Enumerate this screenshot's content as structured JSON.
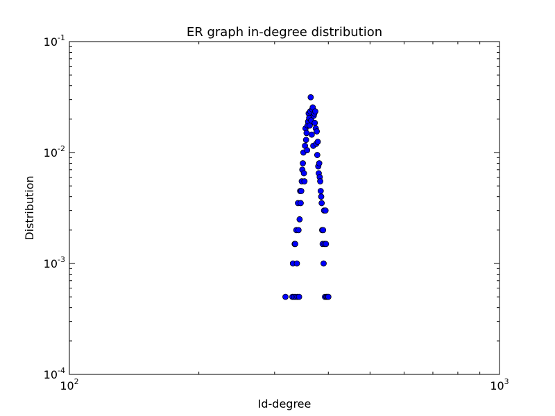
{
  "chart_data": {
    "type": "scatter",
    "title": "ER graph in-degree distribution",
    "xlabel": "Id-degree",
    "ylabel": "Distribution",
    "xscale": "log",
    "yscale": "log",
    "xlim": [
      100,
      1000
    ],
    "ylim": [
      0.0001,
      0.1
    ],
    "grid": false,
    "legend": "none",
    "marker_color": "#0000ff",
    "marker_edge_color": "#000000",
    "x_ticks": [
      {
        "base": "10",
        "exp": "2",
        "value": 100
      },
      {
        "base": "10",
        "exp": "3",
        "value": 1000
      }
    ],
    "y_ticks": [
      {
        "base": "10",
        "exp": "-4",
        "value": 0.0001
      },
      {
        "base": "10",
        "exp": "-3",
        "value": 0.001
      },
      {
        "base": "10",
        "exp": "-2",
        "value": 0.01
      },
      {
        "base": "10",
        "exp": "-1",
        "value": 0.1
      }
    ],
    "points": [
      {
        "x": 318,
        "y": 0.0005
      },
      {
        "x": 330,
        "y": 0.0005
      },
      {
        "x": 331,
        "y": 0.001
      },
      {
        "x": 333,
        "y": 0.0005
      },
      {
        "x": 334,
        "y": 0.0015
      },
      {
        "x": 335,
        "y": 0.0015
      },
      {
        "x": 336,
        "y": 0.0005
      },
      {
        "x": 337,
        "y": 0.002
      },
      {
        "x": 338,
        "y": 0.001
      },
      {
        "x": 339,
        "y": 0.0005
      },
      {
        "x": 340,
        "y": 0.0035
      },
      {
        "x": 341,
        "y": 0.002
      },
      {
        "x": 342,
        "y": 0.0005
      },
      {
        "x": 343,
        "y": 0.0025
      },
      {
        "x": 344,
        "y": 0.0045
      },
      {
        "x": 345,
        "y": 0.0035
      },
      {
        "x": 346,
        "y": 0.0045
      },
      {
        "x": 347,
        "y": 0.0055
      },
      {
        "x": 348,
        "y": 0.007
      },
      {
        "x": 349,
        "y": 0.008
      },
      {
        "x": 350,
        "y": 0.01
      },
      {
        "x": 351,
        "y": 0.0065
      },
      {
        "x": 352,
        "y": 0.0055
      },
      {
        "x": 353,
        "y": 0.0115
      },
      {
        "x": 354,
        "y": 0.0165
      },
      {
        "x": 355,
        "y": 0.013
      },
      {
        "x": 356,
        "y": 0.015
      },
      {
        "x": 357,
        "y": 0.0105
      },
      {
        "x": 358,
        "y": 0.0175
      },
      {
        "x": 359,
        "y": 0.019
      },
      {
        "x": 360,
        "y": 0.0225
      },
      {
        "x": 361,
        "y": 0.0205
      },
      {
        "x": 362,
        "y": 0.0175
      },
      {
        "x": 363,
        "y": 0.0235
      },
      {
        "x": 364,
        "y": 0.0315
      },
      {
        "x": 365,
        "y": 0.0195
      },
      {
        "x": 366,
        "y": 0.0145
      },
      {
        "x": 367,
        "y": 0.0245
      },
      {
        "x": 368,
        "y": 0.0255
      },
      {
        "x": 369,
        "y": 0.0115
      },
      {
        "x": 370,
        "y": 0.0215
      },
      {
        "x": 371,
        "y": 0.0225
      },
      {
        "x": 372,
        "y": 0.0185
      },
      {
        "x": 373,
        "y": 0.0235
      },
      {
        "x": 374,
        "y": 0.0165
      },
      {
        "x": 375,
        "y": 0.012
      },
      {
        "x": 376,
        "y": 0.0155
      },
      {
        "x": 377,
        "y": 0.0095
      },
      {
        "x": 378,
        "y": 0.0125
      },
      {
        "x": 379,
        "y": 0.0075
      },
      {
        "x": 380,
        "y": 0.0065
      },
      {
        "x": 381,
        "y": 0.008
      },
      {
        "x": 382,
        "y": 0.006
      },
      {
        "x": 383,
        "y": 0.0055
      },
      {
        "x": 384,
        "y": 0.0045
      },
      {
        "x": 385,
        "y": 0.004
      },
      {
        "x": 386,
        "y": 0.0035
      },
      {
        "x": 387,
        "y": 0.002
      },
      {
        "x": 388,
        "y": 0.0015
      },
      {
        "x": 389,
        "y": 0.002
      },
      {
        "x": 390,
        "y": 0.001
      },
      {
        "x": 391,
        "y": 0.003
      },
      {
        "x": 392,
        "y": 0.0015
      },
      {
        "x": 393,
        "y": 0.0005
      },
      {
        "x": 394,
        "y": 0.003
      },
      {
        "x": 395,
        "y": 0.0015
      },
      {
        "x": 396,
        "y": 0.0005
      },
      {
        "x": 398,
        "y": 0.0005
      },
      {
        "x": 400,
        "y": 0.0005
      }
    ]
  }
}
